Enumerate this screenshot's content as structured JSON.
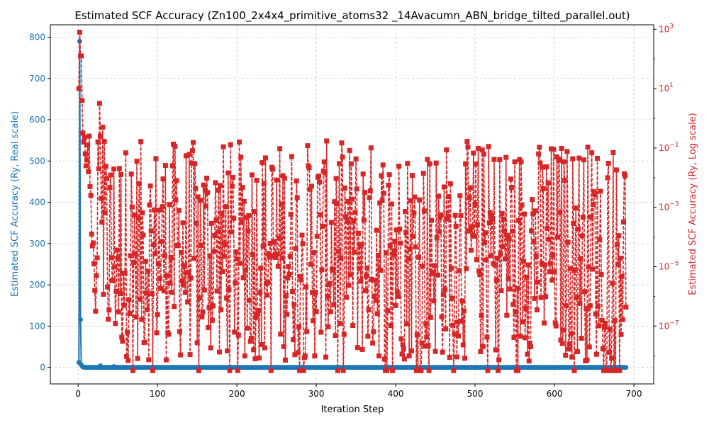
{
  "chart_data": {
    "type": "line",
    "title": "Estimated SCF Accuracy (Zn100_2x4x4_primitive_atoms32 _14Avacumn_ABN_bridge_tilted_parallel.out)",
    "xlabel": "Iteration Step",
    "xlim": [
      -35,
      725
    ],
    "xticks": [
      0,
      100,
      200,
      300,
      400,
      500,
      600,
      700
    ],
    "grid": true,
    "series": [
      {
        "axis": "left",
        "scale": "linear",
        "ylabel": "Estimated SCF Accuracy (Ry, Real scale)",
        "ylim": [
          -40,
          830
        ],
        "yticks": [
          0,
          100,
          200,
          300,
          400,
          500,
          600,
          700,
          800
        ],
        "color": "#1f77b4",
        "marker": "circle",
        "line": "solid",
        "x_start": 1,
        "count": 690,
        "values_head": [
          12,
          790,
          116,
          6,
          3,
          1,
          0.5,
          0.3,
          0.2,
          0.1
        ],
        "bumps": [
          [
            28,
            4
          ],
          [
            45,
            2
          ]
        ],
        "values_tail": 0
      },
      {
        "axis": "right",
        "scale": "log",
        "ylabel": "Estimated SCF Accuracy (Ry, Log scale)",
        "ylim_exp": [
          -8.95,
          3.15
        ],
        "yticks": [
          3,
          1,
          -1,
          -3,
          -5,
          -7
        ],
        "color": "#d62728",
        "marker": "square",
        "line": "dashed",
        "x_start": 1,
        "count": 690,
        "log10_head": [
          1.0,
          2.9,
          2.1,
          2.1,
          0.6,
          -0.5,
          -0.8,
          -0.65,
          -1.2,
          -1.6,
          -1.4,
          -0.9,
          -1.8,
          -0.6,
          -2.3,
          -2.6,
          -3.9,
          -4.3,
          -4.2,
          -4.9,
          -5.8,
          -6.5,
          -5.3,
          -4.7,
          -0.8,
          -1.7,
          0.5,
          -0.6,
          -2.7,
          -3.5,
          -0.3
        ],
        "log10_min": -8.5,
        "log10_range": [
          -8.5,
          -0.4
        ]
      }
    ]
  }
}
